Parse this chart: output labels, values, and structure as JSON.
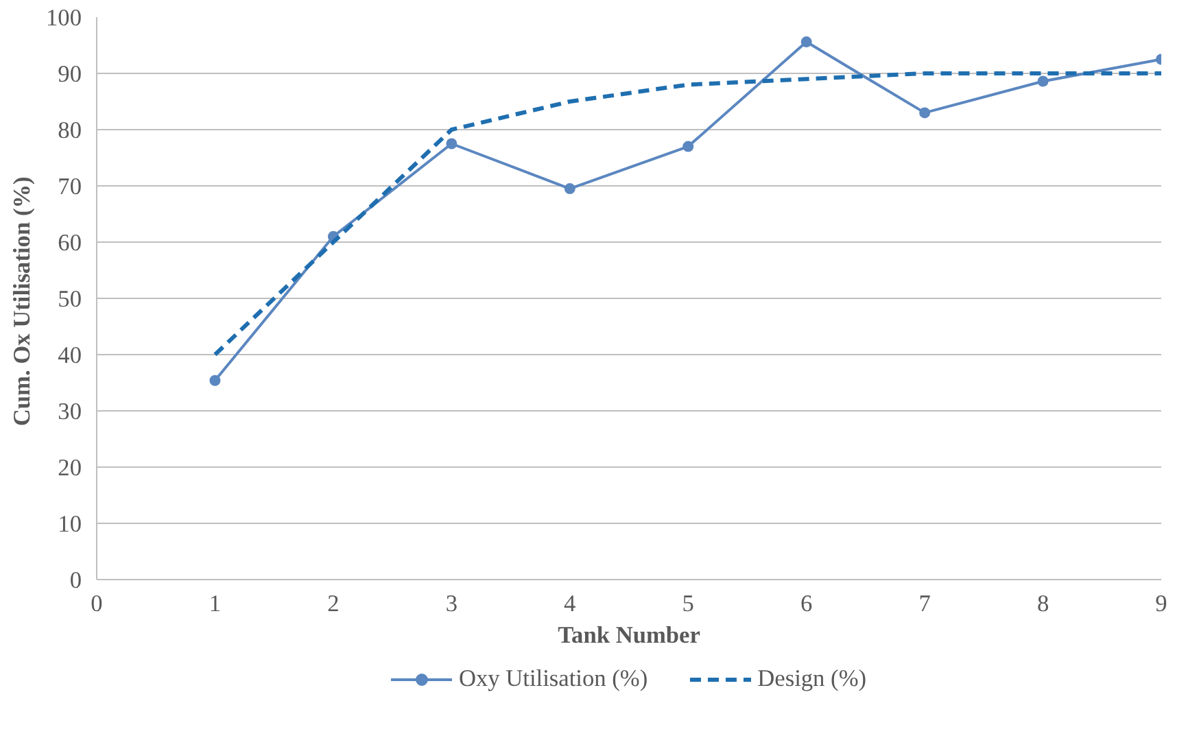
{
  "chart_data": {
    "type": "line",
    "xlabel": "Tank Number",
    "ylabel": "Cum.  Ox Utilisation (%)",
    "xlim": [
      0,
      9
    ],
    "xticks": [
      0,
      1,
      2,
      3,
      4,
      5,
      6,
      7,
      8,
      9
    ],
    "ylim": [
      0,
      100
    ],
    "yticks": [
      0,
      10,
      20,
      30,
      40,
      50,
      60,
      70,
      80,
      90,
      100
    ],
    "grid": "y",
    "legend": "bottom",
    "series": [
      {
        "name": "Oxy Utilisation (%)",
        "color": "#5b87c0",
        "x": [
          1,
          2,
          3,
          4,
          5,
          6,
          7,
          8,
          9
        ],
        "values": [
          35.4,
          61,
          77.5,
          69.5,
          77,
          95.6,
          83,
          88.6,
          92.5
        ],
        "marker": "circle",
        "line_style": "solid"
      },
      {
        "name": "Design (%)",
        "color": "#1f6fb0",
        "x": [
          1,
          2,
          3,
          4,
          5,
          6,
          7,
          8,
          9
        ],
        "values": [
          40,
          60,
          80,
          85,
          88,
          89,
          90,
          90,
          90
        ],
        "marker": "none",
        "line_style": "dashed"
      }
    ]
  }
}
